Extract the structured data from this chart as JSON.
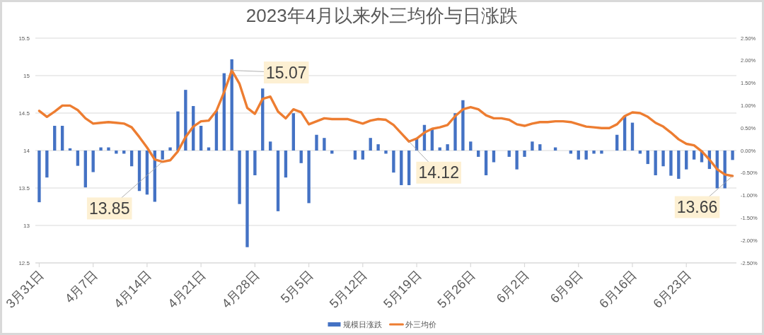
{
  "chart_data": {
    "type": "bar",
    "title": "2023年4月以来外三均价与日涨跌",
    "x": [
      "2023-03-31",
      "2023-04-01",
      "2023-04-02",
      "2023-04-03",
      "2023-04-04",
      "2023-04-05",
      "2023-04-06",
      "2023-04-07",
      "2023-04-08",
      "2023-04-09",
      "2023-04-10",
      "2023-04-11",
      "2023-04-12",
      "2023-04-13",
      "2023-04-14",
      "2023-04-15",
      "2023-04-16",
      "2023-04-17",
      "2023-04-18",
      "2023-04-19",
      "2023-04-20",
      "2023-04-21",
      "2023-04-22",
      "2023-04-23",
      "2023-04-24",
      "2023-04-25",
      "2023-04-26",
      "2023-04-27",
      "2023-04-28",
      "2023-04-29",
      "2023-04-30",
      "2023-05-01",
      "2023-05-02",
      "2023-05-03",
      "2023-05-04",
      "2023-05-05",
      "2023-05-06",
      "2023-05-07",
      "2023-05-08",
      "2023-05-09",
      "2023-05-10",
      "2023-05-11",
      "2023-05-12",
      "2023-05-13",
      "2023-05-14",
      "2023-05-15",
      "2023-05-16",
      "2023-05-17",
      "2023-05-18",
      "2023-05-19",
      "2023-05-20",
      "2023-05-21",
      "2023-05-22",
      "2023-05-23",
      "2023-05-24",
      "2023-05-25",
      "2023-05-26",
      "2023-05-27",
      "2023-05-28",
      "2023-05-29",
      "2023-05-30",
      "2023-05-31",
      "2023-06-01",
      "2023-06-02",
      "2023-06-03",
      "2023-06-04",
      "2023-06-05",
      "2023-06-06",
      "2023-06-07",
      "2023-06-08",
      "2023-06-09",
      "2023-06-10",
      "2023-06-11",
      "2023-06-12",
      "2023-06-13",
      "2023-06-14",
      "2023-06-15",
      "2023-06-16",
      "2023-06-17",
      "2023-06-18",
      "2023-06-19",
      "2023-06-20",
      "2023-06-21",
      "2023-06-22",
      "2023-06-23",
      "2023-06-24",
      "2023-06-25",
      "2023-06-26",
      "2023-06-27",
      "2023-06-28",
      "2023-06-29"
    ],
    "xlim": [
      "2023-03-30T12:00",
      "2023-06-29T12:00"
    ],
    "xticks": [
      {
        "value": "2023-03-31",
        "label": "3月31日"
      },
      {
        "value": "2023-04-07",
        "label": "4月7日"
      },
      {
        "value": "2023-04-14",
        "label": "4月14日"
      },
      {
        "value": "2023-04-21",
        "label": "4月21日"
      },
      {
        "value": "2023-04-28",
        "label": "4月28日"
      },
      {
        "value": "2023-05-05",
        "label": "5月5日"
      },
      {
        "value": "2023-05-12",
        "label": "5月12日"
      },
      {
        "value": "2023-05-19",
        "label": "5月19日"
      },
      {
        "value": "2023-05-26",
        "label": "5月26日"
      },
      {
        "value": "2023-06-02",
        "label": "6月2日"
      },
      {
        "value": "2023-06-09",
        "label": "6月9日"
      },
      {
        "value": "2023-06-16",
        "label": "6月16日"
      },
      {
        "value": "2023-06-23",
        "label": "6月23日"
      }
    ],
    "ylim": [
      12.5,
      15.5
    ],
    "yticks": [
      12.5,
      13,
      13.5,
      14,
      14.5,
      15,
      15.5
    ],
    "y2lim": [
      -2.5,
      2.5
    ],
    "y2ticks": [
      {
        "value": -2.5,
        "label": "-2.50%"
      },
      {
        "value": -2,
        "label": "-2.00%"
      },
      {
        "value": -1.5,
        "label": "-1.50%"
      },
      {
        "value": -1,
        "label": "-1.00%"
      },
      {
        "value": -0.5,
        "label": "-0.50%"
      },
      {
        "value": 0,
        "label": "0.00%"
      },
      {
        "value": 0.5,
        "label": "0.50%"
      },
      {
        "value": 1,
        "label": "1.00%"
      },
      {
        "value": 1.5,
        "label": "1.50%"
      },
      {
        "value": 2,
        "label": "2.00%"
      },
      {
        "value": 2.5,
        "label": "2.50%"
      }
    ],
    "series": [
      {
        "name": "规模日涨跌",
        "axis": "y2",
        "color": "#4472c4",
        "values": [
          -1.15,
          -0.6,
          0.55,
          0.55,
          0.05,
          -0.34,
          -0.82,
          -0.48,
          0.07,
          0.07,
          -0.07,
          -0.07,
          -0.35,
          -0.9,
          -0.98,
          -1.14,
          -0.2,
          0.07,
          0.87,
          1.35,
          0.99,
          0.55,
          0.07,
          0.88,
          1.72,
          2.03,
          -1.19,
          -2.15,
          -0.55,
          1.38,
          0.2,
          -1.35,
          -0.6,
          0.83,
          -0.28,
          -1.17,
          0.35,
          0.28,
          -0.07,
          0,
          0,
          -0.2,
          -0.2,
          0.28,
          0.14,
          -0.07,
          -0.49,
          -0.77,
          -0.77,
          0.28,
          0.57,
          0.49,
          0.07,
          0.14,
          0.83,
          1.12,
          0.2,
          -0.14,
          -0.55,
          -0.26,
          0,
          -0.14,
          -0.42,
          -0.14,
          0.2,
          0.14,
          0,
          0.07,
          0,
          -0.07,
          -0.2,
          -0.2,
          -0.07,
          -0.07,
          0,
          0.35,
          0.77,
          0.62,
          -0.07,
          -0.3,
          -0.55,
          -0.35,
          -0.56,
          -0.63,
          -0.42,
          -0.2,
          -0.26,
          -0.41,
          -0.84,
          -0.84,
          -0.21
        ]
      },
      {
        "name": "外三均价",
        "type": "line",
        "color": "#ed7d31",
        "values": [
          14.53,
          14.45,
          14.52,
          14.6,
          14.6,
          14.54,
          14.43,
          14.36,
          14.37,
          14.38,
          14.37,
          14.36,
          14.31,
          14.18,
          14.04,
          13.88,
          13.85,
          13.87,
          13.99,
          14.18,
          14.32,
          14.39,
          14.4,
          14.53,
          14.78,
          15.07,
          14.89,
          14.57,
          14.49,
          14.69,
          14.72,
          14.52,
          14.43,
          14.55,
          14.51,
          14.35,
          14.39,
          14.43,
          14.42,
          14.42,
          14.42,
          14.39,
          14.36,
          14.4,
          14.42,
          14.41,
          14.34,
          14.23,
          14.12,
          14.16,
          14.24,
          14.29,
          14.31,
          14.34,
          14.46,
          14.55,
          14.58,
          14.55,
          14.47,
          14.43,
          14.43,
          14.41,
          14.35,
          14.33,
          14.36,
          14.38,
          14.38,
          14.39,
          14.39,
          14.38,
          14.35,
          14.32,
          14.31,
          14.3,
          14.3,
          14.35,
          14.46,
          14.51,
          14.5,
          14.45,
          14.37,
          14.32,
          14.24,
          14.15,
          14.09,
          14.07,
          13.99,
          13.88,
          13.75,
          13.68,
          13.66
        ]
      }
    ],
    "annotations": [
      {
        "text": "15.07",
        "x": "2023-04-25",
        "y": 15.07
      },
      {
        "text": "13.85",
        "x": "2023-04-16",
        "y": 13.85
      },
      {
        "text": "14.12",
        "x": "2023-05-18",
        "y": 14.12
      },
      {
        "text": "13.66",
        "x": "2023-06-29",
        "y": 13.66
      }
    ],
    "grid": "y",
    "legend": "bottom"
  }
}
